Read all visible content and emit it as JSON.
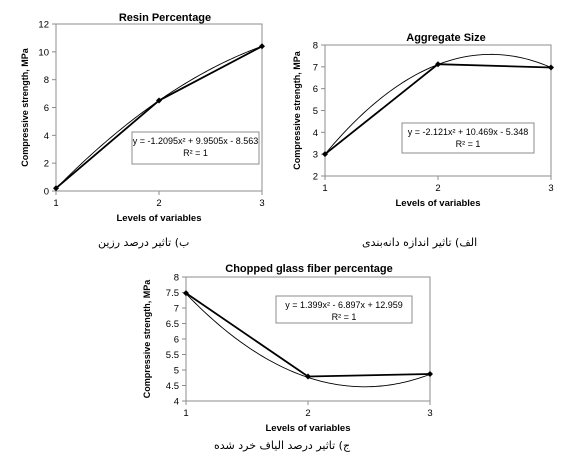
{
  "chart_data": [
    {
      "type": "line",
      "title": "Resin Percentage",
      "xlabel": "Levels of variables",
      "ylabel": "Compressive strength, MPa",
      "x": [
        1,
        2,
        3
      ],
      "xlim": [
        1,
        3
      ],
      "ylim": [
        0,
        12
      ],
      "xticks": [
        "1",
        "2",
        "3"
      ],
      "yticks": [
        "0",
        "2",
        "4",
        "6",
        "8",
        "10",
        "12"
      ],
      "grid": false,
      "series": [
        {
          "values": [
            0.2,
            6.5,
            10.4
          ],
          "style": "data-with-markers"
        }
      ],
      "trendline": {
        "type": "polynomial",
        "order": 2,
        "a": -1.2095,
        "b": 9.9505,
        "c": -8.563
      },
      "annotation": {
        "equation": "y = -1.2095x² + 9.9505x - 8.563",
        "r2": "R² = 1"
      },
      "caption": "ب) تاثیر درصد رزین"
    },
    {
      "type": "line",
      "title": "Aggregate Size",
      "xlabel": "Levels of variables",
      "ylabel": "Compressive strength, MPa",
      "x": [
        1,
        2,
        3
      ],
      "xlim": [
        1,
        3
      ],
      "ylim": [
        2,
        8
      ],
      "xticks": [
        "1",
        "2",
        "3"
      ],
      "yticks": [
        "2",
        "3",
        "4",
        "5",
        "6",
        "7",
        "8"
      ],
      "grid": false,
      "series": [
        {
          "values": [
            3.0,
            7.12,
            6.97
          ],
          "style": "data-with-markers"
        }
      ],
      "trendline": {
        "type": "polynomial",
        "order": 2,
        "a": -2.121,
        "b": 10.469,
        "c": -5.348
      },
      "annotation": {
        "equation": "y = -2.121x² + 10.469x - 5.348",
        "r2": "R² = 1"
      },
      "caption": "الف) تاثیر اندازه دانه‌بندی"
    },
    {
      "type": "line",
      "title": "Chopped glass fiber percentage",
      "xlabel": "Levels of variables",
      "ylabel": "Compressive strength, MPa",
      "x": [
        1,
        2,
        3
      ],
      "xlim": [
        1,
        3
      ],
      "ylim": [
        4,
        8
      ],
      "xticks": [
        "1",
        "2",
        "3"
      ],
      "yticks": [
        "4",
        "4.5",
        "5",
        "5.5",
        "6",
        "6.5",
        "7",
        "7.5",
        "8"
      ],
      "grid": false,
      "series": [
        {
          "values": [
            7.48,
            4.79,
            4.87
          ],
          "style": "data-with-markers"
        }
      ],
      "trendline": {
        "type": "polynomial",
        "order": 2,
        "a": 1.399,
        "b": -6.897,
        "c": 12.959
      },
      "annotation": {
        "equation": "y = 1.399x² - 6.897x + 12.959",
        "r2": "R² = 1"
      },
      "caption": "ج) تاثیر درصد الیاف خرد شده"
    }
  ]
}
